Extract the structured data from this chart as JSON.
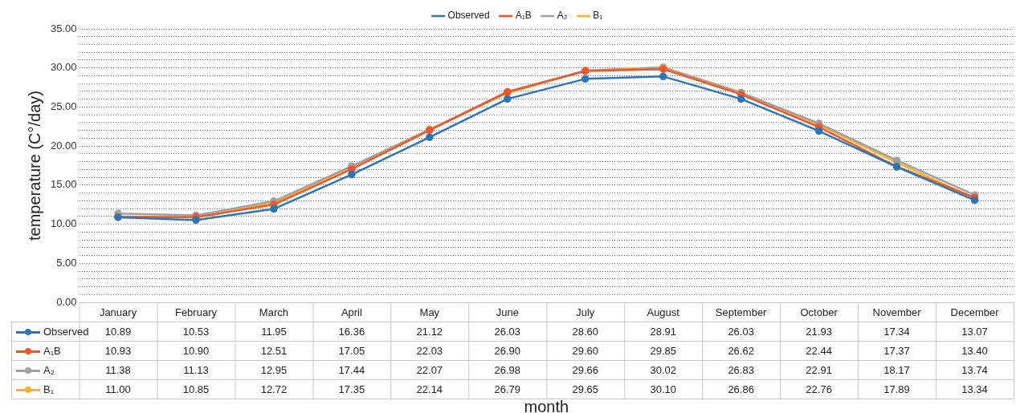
{
  "chart_data": {
    "type": "line",
    "xlabel": "month",
    "ylabel": "temperature (C°/day)",
    "categories": [
      "January",
      "February",
      "March",
      "April",
      "May",
      "June",
      "July",
      "August",
      "September",
      "October",
      "November",
      "December"
    ],
    "series": [
      {
        "name": "Observed",
        "color": "#2e75b6",
        "values": [
          10.89,
          10.53,
          11.95,
          16.36,
          21.12,
          26.03,
          28.6,
          28.91,
          26.03,
          21.93,
          17.34,
          13.07
        ],
        "value_labels": [
          "10.89",
          "10.53",
          "11.95",
          "16.36",
          "21.12",
          "26.03",
          "28.60",
          "28.91",
          "26.03",
          "21.93",
          "17.34",
          "13.07"
        ]
      },
      {
        "name": "A₁B",
        "color": "#f0562a",
        "values": [
          10.93,
          10.9,
          12.51,
          17.05,
          22.03,
          26.9,
          29.6,
          29.85,
          26.62,
          22.44,
          17.37,
          13.4
        ],
        "value_labels": [
          "10.93",
          "10.90",
          "12.51",
          "17.05",
          "22.03",
          "26.90",
          "29.60",
          "29.85",
          "26.62",
          "22.44",
          "17.37",
          "13.40"
        ]
      },
      {
        "name": "A₂",
        "color": "#a0a0a0",
        "values": [
          11.38,
          11.13,
          12.95,
          17.44,
          22.07,
          26.98,
          29.66,
          30.02,
          26.83,
          22.91,
          18.17,
          13.74
        ],
        "value_labels": [
          "11.38",
          "11.13",
          "12.95",
          "17.44",
          "22.07",
          "26.98",
          "29.66",
          "30.02",
          "26.83",
          "22.91",
          "18.17",
          "13.74"
        ]
      },
      {
        "name": "B₁",
        "color": "#fbb12a",
        "values": [
          11.0,
          10.85,
          12.72,
          17.35,
          22.14,
          26.79,
          29.65,
          30.1,
          26.86,
          22.76,
          17.89,
          13.34
        ],
        "value_labels": [
          "11.00",
          "10.85",
          "12.72",
          "17.35",
          "22.14",
          "26.79",
          "29.65",
          "30.10",
          "26.86",
          "22.76",
          "17.89",
          "13.34"
        ]
      }
    ],
    "ylim": [
      0,
      35
    ],
    "yticks": [
      {
        "value": 0,
        "label": "0.00"
      },
      {
        "value": 1,
        "label": null
      },
      {
        "value": 2,
        "label": null
      },
      {
        "value": 3,
        "label": null
      },
      {
        "value": 4,
        "label": null
      },
      {
        "value": 5,
        "label": "5.00"
      },
      {
        "value": 6,
        "label": null
      },
      {
        "value": 7,
        "label": null
      },
      {
        "value": 8,
        "label": null
      },
      {
        "value": 9,
        "label": null
      },
      {
        "value": 10,
        "label": "10.00"
      },
      {
        "value": 11,
        "label": null
      },
      {
        "value": 12,
        "label": null
      },
      {
        "value": 13,
        "label": null
      },
      {
        "value": 14,
        "label": null
      },
      {
        "value": 15,
        "label": "15.00"
      },
      {
        "value": 16,
        "label": null
      },
      {
        "value": 17,
        "label": null
      },
      {
        "value": 18,
        "label": null
      },
      {
        "value": 19,
        "label": null
      },
      {
        "value": 20,
        "label": "20.00"
      },
      {
        "value": 21,
        "label": null
      },
      {
        "value": 22,
        "label": null
      },
      {
        "value": 23,
        "label": null
      },
      {
        "value": 24,
        "label": null
      },
      {
        "value": 25,
        "label": "25.00"
      },
      {
        "value": 26,
        "label": null
      },
      {
        "value": 27,
        "label": null
      },
      {
        "value": 28,
        "label": null
      },
      {
        "value": 29,
        "label": null
      },
      {
        "value": 30,
        "label": "30.00"
      },
      {
        "value": 31,
        "label": null
      },
      {
        "value": 32,
        "label": null
      },
      {
        "value": 33,
        "label": null
      },
      {
        "value": 34,
        "label": null
      },
      {
        "value": 35,
        "label": "35.00"
      }
    ],
    "grid": "y",
    "legend": "top",
    "marker": "circle",
    "line_style": "solid"
  }
}
